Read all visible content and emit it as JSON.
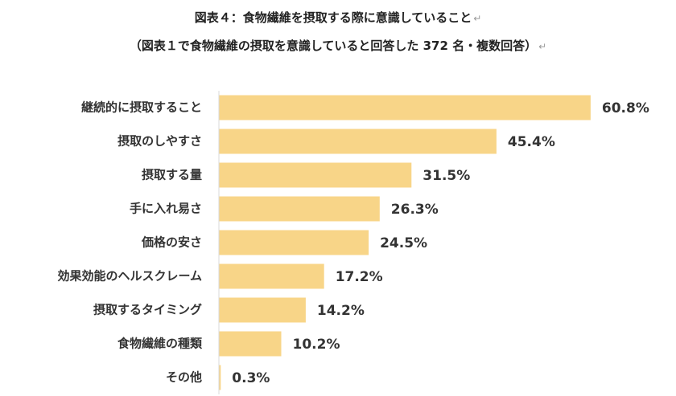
{
  "title_line1": "図表４：食物繊維を摂取する際に意識していること",
  "title_line2": "（図表１で食物繊維の摂取を意識していると回答した 372 名・複数回答）",
  "return_mark": "↵",
  "colors": {
    "bar": "#f8d588",
    "axis": "#d9d9d9",
    "text": "#333333"
  },
  "chart_data": {
    "type": "bar",
    "orientation": "horizontal",
    "categories": [
      "継続的に摂取すること",
      "摂取のしやすさ",
      "摂取する量",
      "手に入れ易さ",
      "価格の安さ",
      "効果効能のヘルスクレーム",
      "摂取するタイミング",
      "食物繊維の種類",
      "その他"
    ],
    "values": [
      60.8,
      45.4,
      31.5,
      26.3,
      24.5,
      17.2,
      14.2,
      10.2,
      0.3
    ],
    "value_labels": [
      "60.8%",
      "45.4%",
      "31.5%",
      "26.3%",
      "24.5%",
      "17.2%",
      "14.2%",
      "10.2%",
      "0.3%"
    ],
    "unit": "%",
    "xlim": [
      0,
      62
    ],
    "grid": false,
    "legend": "none"
  }
}
